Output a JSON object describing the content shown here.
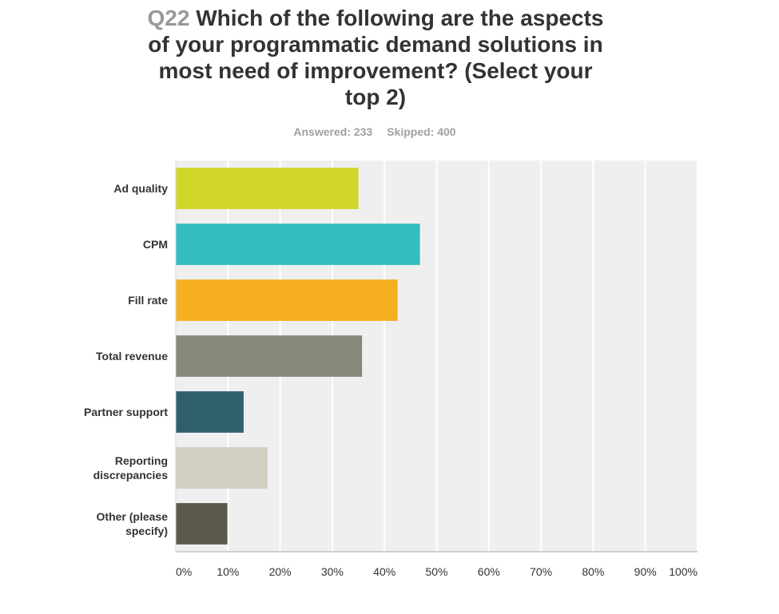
{
  "header": {
    "question_number": "Q22",
    "question_text": "Which of the following are the aspects of your programmatic demand solutions in most need of improvement? (Select your top 2)",
    "answered": "Answered: 233",
    "skipped": "Skipped: 400"
  },
  "chart_data": {
    "type": "bar",
    "orientation": "horizontal",
    "categories": [
      [
        "Ad quality"
      ],
      [
        "CPM"
      ],
      [
        "Fill rate"
      ],
      [
        "Total revenue"
      ],
      [
        "Partner support"
      ],
      [
        "Reporting",
        "discrepancies"
      ],
      [
        "Other (please",
        "specify)"
      ]
    ],
    "values": [
      35,
      46.8,
      42.5,
      35.7,
      13,
      17.6,
      9.9
    ],
    "colors": [
      "#cfd629",
      "#33bdbf",
      "#f6af21",
      "#878877",
      "#305f6d",
      "#d0cfc1",
      "#5b594b"
    ],
    "xlim": [
      0,
      100
    ],
    "x_ticks": [
      "0%",
      "10%",
      "20%",
      "30%",
      "40%",
      "50%",
      "60%",
      "70%",
      "80%",
      "90%",
      "100%"
    ],
    "grid": true,
    "background": "#efefef"
  }
}
